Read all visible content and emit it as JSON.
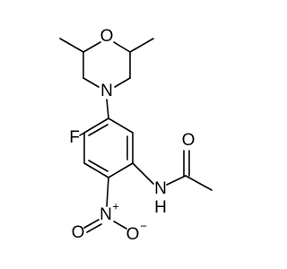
{
  "atoms": {
    "morpholine_o": "O",
    "morpholine_n": "N",
    "fluorine": "F",
    "amide_n": "N",
    "amide_h": "H",
    "carbonyl_o": "O",
    "nitro_n": {
      "label": "N",
      "charge": "+"
    },
    "nitro_o_double": "O",
    "nitro_o_single": {
      "label": "O",
      "charge": "−"
    }
  }
}
